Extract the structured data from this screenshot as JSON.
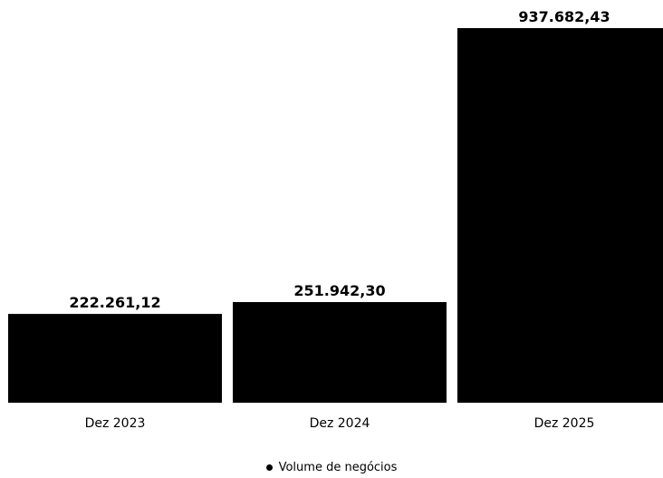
{
  "chart_data": {
    "type": "bar",
    "categories": [
      "Dez 2023",
      "Dez 2024",
      "Dez 2025"
    ],
    "series": [
      {
        "name": "Volume de negócios",
        "values": [
          222261.12,
          251942.3,
          937682.43
        ],
        "value_labels": [
          "222.261,12",
          "251.942,30",
          "937.682,43"
        ],
        "color": "#000000"
      }
    ],
    "ylim": [
      0,
      937682.43
    ],
    "grid": false,
    "legend_position": "bottom-center"
  }
}
